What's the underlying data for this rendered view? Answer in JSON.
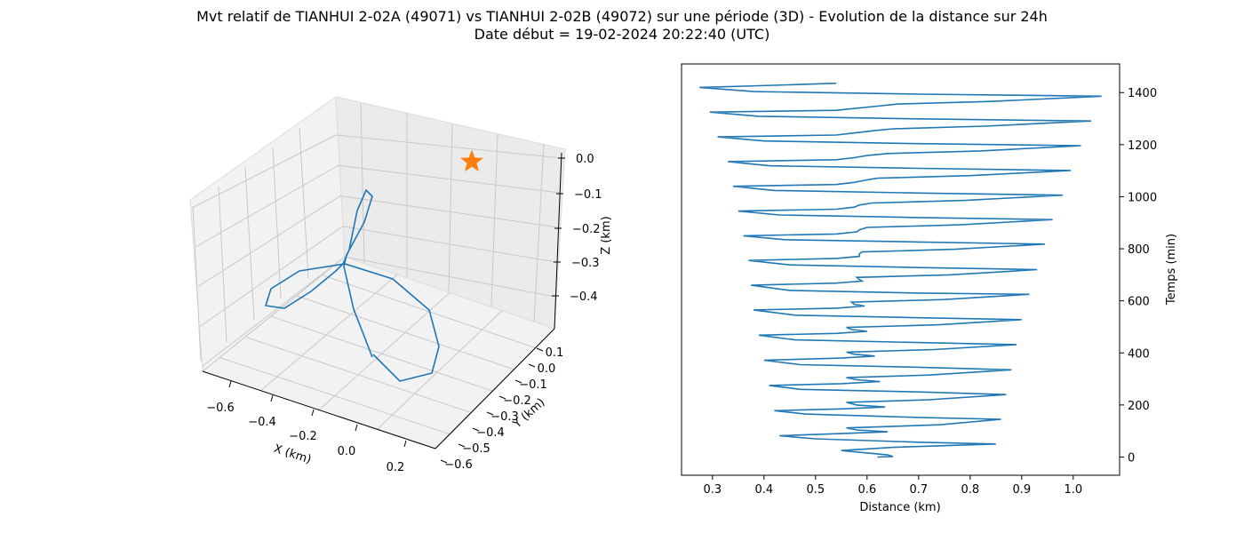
{
  "figure": {
    "title_line1": "Mvt relatif de TIANHUI 2-02A (49071) vs TIANHUI 2-02B (49072) sur une période (3D) - Evolution de la distance sur 24h",
    "title_line2": "Date début = 19-02-2024 20:22:40 (UTC)"
  },
  "colors": {
    "series": "#1f77b4",
    "marker": "#ff7f0e",
    "pane": "#f2f2f2",
    "grid": "#c8c8c8"
  },
  "chart_data": [
    {
      "type": "line3d",
      "xlabel": "X (km)",
      "ylabel": "Y (km)",
      "zlabel": "Z (km)",
      "xticks": [
        "−0.6",
        "−0.4",
        "−0.2",
        "0.0",
        "0.2"
      ],
      "yticks": [
        "0.1",
        "0.0",
        "−0.1",
        "−0.2",
        "−0.3",
        "−0.4",
        "−0.5",
        "−0.6"
      ],
      "zticks": [
        "0.0",
        "−0.1",
        "−0.2",
        "−0.3",
        "−0.4"
      ],
      "marker": {
        "symbol": "star",
        "x": 0.0,
        "y": 0.0,
        "z": 0.0
      },
      "grid": true
    },
    {
      "type": "line",
      "xlabel": "Distance (km)",
      "ylabel": "Temps (min)",
      "xlim": [
        0.24,
        1.09
      ],
      "ylim": [
        -70,
        1510
      ],
      "xticks": [
        0.3,
        0.4,
        0.5,
        0.6,
        0.7,
        0.8,
        0.9,
        1.0
      ],
      "yticks": [
        0,
        200,
        400,
        600,
        800,
        1000,
        1200,
        1400
      ],
      "series": [
        {
          "points": [
            [
              0.62,
              0
            ],
            [
              0.65,
              2
            ],
            [
              0.64,
              8
            ],
            [
              0.55,
              25
            ],
            [
              0.65,
              37
            ],
            [
              0.85,
              50
            ],
            [
              0.7,
              57
            ],
            [
              0.5,
              70
            ],
            [
              0.43,
              82
            ],
            [
              0.55,
              90
            ],
            [
              0.64,
              97
            ],
            [
              0.58,
              104
            ],
            [
              0.56,
              112
            ],
            [
              0.74,
              124
            ],
            [
              0.86,
              145
            ],
            [
              0.7,
              152
            ],
            [
              0.48,
              165
            ],
            [
              0.42,
              178
            ],
            [
              0.55,
              185
            ],
            [
              0.635,
              192
            ],
            [
              0.58,
              200
            ],
            [
              0.56,
              210
            ],
            [
              0.72,
              220
            ],
            [
              0.87,
              240
            ],
            [
              0.7,
              250
            ],
            [
              0.47,
              260
            ],
            [
              0.41,
              275
            ],
            [
              0.55,
              282
            ],
            [
              0.625,
              290
            ],
            [
              0.58,
              297
            ],
            [
              0.56,
              305
            ],
            [
              0.72,
              315
            ],
            [
              0.88,
              335
            ],
            [
              0.7,
              345
            ],
            [
              0.47,
              355
            ],
            [
              0.4,
              372
            ],
            [
              0.55,
              380
            ],
            [
              0.615,
              388
            ],
            [
              0.575,
              395
            ],
            [
              0.56,
              403
            ],
            [
              0.73,
              413
            ],
            [
              0.89,
              432
            ],
            [
              0.7,
              440
            ],
            [
              0.46,
              450
            ],
            [
              0.39,
              468
            ],
            [
              0.54,
              475
            ],
            [
              0.6,
              483
            ],
            [
              0.57,
              490
            ],
            [
              0.56,
              498
            ],
            [
              0.74,
              508
            ],
            [
              0.9,
              528
            ],
            [
              0.7,
              535
            ],
            [
              0.46,
              545
            ],
            [
              0.38,
              565
            ],
            [
              0.54,
              572
            ],
            [
              0.595,
              580
            ],
            [
              0.575,
              587
            ],
            [
              0.57,
              595
            ],
            [
              0.75,
              605
            ],
            [
              0.915,
              625
            ],
            [
              0.7,
              630
            ],
            [
              0.45,
              640
            ],
            [
              0.375,
              660
            ],
            [
              0.54,
              668
            ],
            [
              0.59,
              676
            ],
            [
              0.585,
              682
            ],
            [
              0.58,
              690
            ],
            [
              0.76,
              700
            ],
            [
              0.93,
              720
            ],
            [
              0.7,
              728
            ],
            [
              0.45,
              738
            ],
            [
              0.37,
              755
            ],
            [
              0.54,
              763
            ],
            [
              0.585,
              771
            ],
            [
              0.585,
              780
            ],
            [
              0.59,
              788
            ],
            [
              0.77,
              798
            ],
            [
              0.945,
              818
            ],
            [
              0.7,
              826
            ],
            [
              0.44,
              835
            ],
            [
              0.36,
              850
            ],
            [
              0.54,
              857
            ],
            [
              0.58,
              865
            ],
            [
              0.585,
              873
            ],
            [
              0.6,
              882
            ],
            [
              0.78,
              892
            ],
            [
              0.96,
              912
            ],
            [
              0.7,
              920
            ],
            [
              0.43,
              930
            ],
            [
              0.35,
              945
            ],
            [
              0.54,
              952
            ],
            [
              0.575,
              960
            ],
            [
              0.585,
              968
            ],
            [
              0.61,
              976
            ],
            [
              0.79,
              986
            ],
            [
              0.98,
              1006
            ],
            [
              0.7,
              1014
            ],
            [
              0.42,
              1024
            ],
            [
              0.34,
              1040
            ],
            [
              0.54,
              1047
            ],
            [
              0.575,
              1055
            ],
            [
              0.595,
              1063
            ],
            [
              0.62,
              1071
            ],
            [
              0.8,
              1081
            ],
            [
              0.995,
              1101
            ],
            [
              0.7,
              1109
            ],
            [
              0.41,
              1119
            ],
            [
              0.33,
              1135
            ],
            [
              0.54,
              1142
            ],
            [
              0.575,
              1150
            ],
            [
              0.6,
              1158
            ],
            [
              0.64,
              1166
            ],
            [
              0.82,
              1176
            ],
            [
              1.015,
              1196
            ],
            [
              0.7,
              1204
            ],
            [
              0.4,
              1214
            ],
            [
              0.31,
              1230
            ],
            [
              0.54,
              1237
            ],
            [
              0.575,
              1245
            ],
            [
              0.61,
              1253
            ],
            [
              0.65,
              1261
            ],
            [
              0.83,
              1271
            ],
            [
              1.035,
              1291
            ],
            [
              0.7,
              1299
            ],
            [
              0.39,
              1309
            ],
            [
              0.295,
              1325
            ],
            [
              0.54,
              1332
            ],
            [
              0.58,
              1340
            ],
            [
              0.62,
              1348
            ],
            [
              0.66,
              1356
            ],
            [
              0.84,
              1366
            ],
            [
              1.055,
              1386
            ],
            [
              0.7,
              1394
            ],
            [
              0.38,
              1404
            ],
            [
              0.275,
              1420
            ],
            [
              0.42,
              1428
            ],
            [
              0.54,
              1436
            ]
          ]
        }
      ]
    }
  ]
}
